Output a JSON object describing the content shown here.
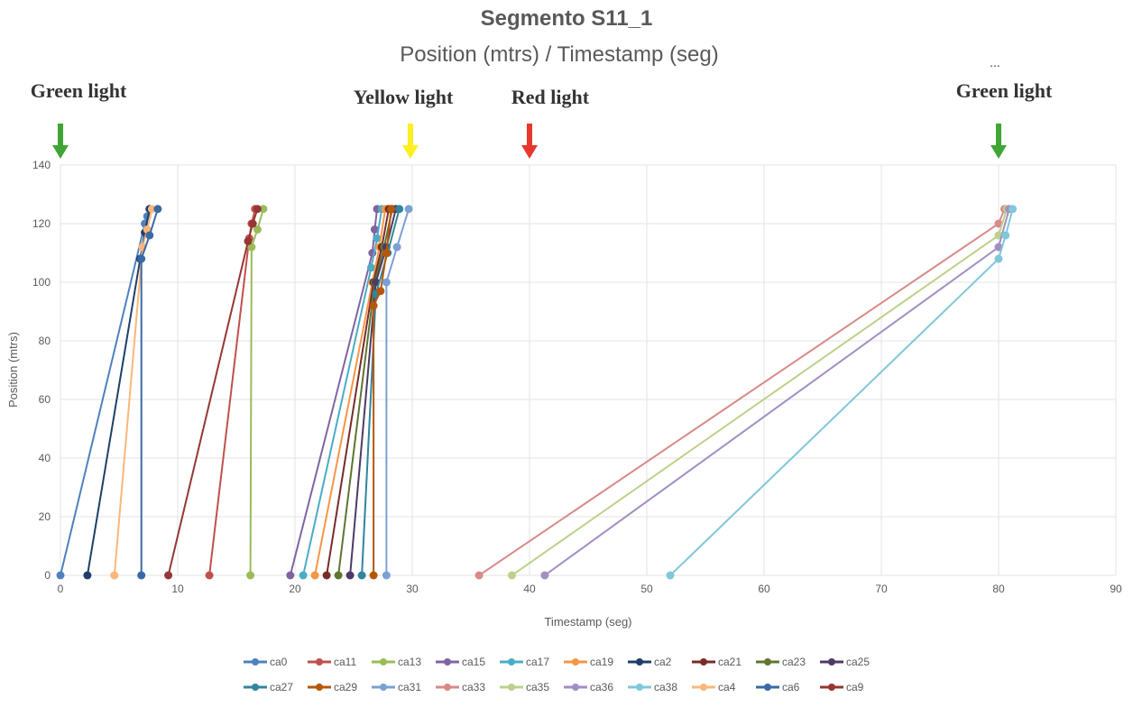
{
  "chart_data": {
    "type": "scatter-line",
    "title": "Segmento S11_1",
    "subtitle": "Position (mtrs) / Timestamp (seg)",
    "xlabel": "Timestamp (seg)",
    "ylabel": "Position (mtrs)",
    "xlim": [
      0,
      90
    ],
    "ylim": [
      0,
      140
    ],
    "xticks": [
      0,
      10,
      20,
      30,
      40,
      50,
      60,
      70,
      80,
      90
    ],
    "yticks": [
      0,
      20,
      40,
      60,
      80,
      100,
      120,
      140
    ],
    "grid": true,
    "legend_position": "bottom",
    "annotations": [
      {
        "text": "Green light",
        "x": 0,
        "arrow_color": "#3fa535"
      },
      {
        "text": "Yellow light",
        "x": 30,
        "arrow_color": "#ffee22"
      },
      {
        "text": "Red light",
        "x": 40,
        "arrow_color": "#e8372c"
      },
      {
        "text": "Green light",
        "x": 80,
        "arrow_color": "#3fa535",
        "note": "..."
      }
    ],
    "series": [
      {
        "name": "ca0",
        "color": "#4f81bd",
        "points": [
          [
            0,
            0
          ],
          [
            7.2,
            120
          ],
          [
            7.4,
            122.5
          ],
          [
            7.6,
            125
          ]
        ]
      },
      {
        "name": "ca11",
        "color": "#c0504d",
        "points": [
          [
            12.7,
            0
          ],
          [
            16.1,
            115
          ],
          [
            16.3,
            120
          ],
          [
            16.6,
            125
          ]
        ]
      },
      {
        "name": "ca13",
        "color": "#9bbb59",
        "points": [
          [
            16.2,
            0
          ],
          [
            16.3,
            112
          ],
          [
            16.8,
            118
          ],
          [
            17.3,
            125
          ]
        ]
      },
      {
        "name": "ca15",
        "color": "#8064a2",
        "points": [
          [
            19.6,
            0
          ],
          [
            26.6,
            110
          ],
          [
            26.8,
            118
          ],
          [
            27.0,
            125
          ]
        ]
      },
      {
        "name": "ca17",
        "color": "#4bacc6",
        "points": [
          [
            20.7,
            0
          ],
          [
            26.5,
            105
          ],
          [
            27.0,
            115
          ],
          [
            27.4,
            125
          ]
        ]
      },
      {
        "name": "ca19",
        "color": "#f79646",
        "points": [
          [
            21.7,
            0
          ],
          [
            26.6,
            100
          ],
          [
            27.2,
            112
          ],
          [
            27.7,
            125
          ]
        ]
      },
      {
        "name": "ca2",
        "color": "#1f3f6a",
        "points": [
          [
            2.3,
            0
          ],
          [
            6.8,
            108
          ],
          [
            7.2,
            117
          ],
          [
            7.6,
            125
          ]
        ]
      },
      {
        "name": "ca21",
        "color": "#772c2a",
        "points": [
          [
            22.7,
            0
          ],
          [
            26.7,
            100
          ],
          [
            27.4,
            112
          ],
          [
            28.0,
            125
          ]
        ]
      },
      {
        "name": "ca23",
        "color": "#5f7530",
        "points": [
          [
            23.7,
            0
          ],
          [
            26.8,
            100
          ],
          [
            27.6,
            112
          ],
          [
            28.3,
            125
          ]
        ]
      },
      {
        "name": "ca25",
        "color": "#4d3b62",
        "points": [
          [
            24.7,
            0
          ],
          [
            26.9,
            100
          ],
          [
            27.8,
            112
          ],
          [
            28.6,
            125
          ]
        ]
      },
      {
        "name": "ca27",
        "color": "#31859c",
        "points": [
          [
            25.7,
            0
          ],
          [
            26.9,
            96
          ],
          [
            27.9,
            110
          ],
          [
            28.9,
            125
          ]
        ]
      },
      {
        "name": "ca29",
        "color": "#b65708",
        "points": [
          [
            26.7,
            0
          ],
          [
            26.7,
            92
          ],
          [
            27.3,
            97
          ],
          [
            27.8,
            110
          ],
          [
            28.2,
            125
          ]
        ]
      },
      {
        "name": "ca31",
        "color": "#7ba0d4",
        "points": [
          [
            27.8,
            0
          ],
          [
            27.8,
            100
          ],
          [
            28.7,
            112
          ],
          [
            29.7,
            125
          ]
        ]
      },
      {
        "name": "ca33",
        "color": "#d88a87",
        "points": [
          [
            35.7,
            0
          ],
          [
            80.0,
            120
          ],
          [
            80.5,
            125
          ]
        ]
      },
      {
        "name": "ca35",
        "color": "#bcd18b",
        "points": [
          [
            38.5,
            0
          ],
          [
            80.0,
            116
          ],
          [
            80.7,
            125
          ]
        ]
      },
      {
        "name": "ca36",
        "color": "#a28fc3",
        "points": [
          [
            41.3,
            0
          ],
          [
            80.0,
            112
          ],
          [
            80.9,
            125
          ]
        ]
      },
      {
        "name": "ca38",
        "color": "#7fc7da",
        "points": [
          [
            52.0,
            0
          ],
          [
            80.0,
            108
          ],
          [
            80.6,
            116
          ],
          [
            81.2,
            125
          ]
        ]
      },
      {
        "name": "ca4",
        "color": "#f9b77a",
        "points": [
          [
            4.6,
            0
          ],
          [
            7.0,
            112
          ],
          [
            7.4,
            118
          ],
          [
            7.8,
            125
          ]
        ]
      },
      {
        "name": "ca6",
        "color": "#3a6aa6",
        "points": [
          [
            6.9,
            0
          ],
          [
            6.9,
            108
          ],
          [
            7.6,
            116
          ],
          [
            8.3,
            125
          ]
        ]
      },
      {
        "name": "ca9",
        "color": "#953735",
        "points": [
          [
            9.2,
            0
          ],
          [
            16.0,
            114
          ],
          [
            16.4,
            120
          ],
          [
            16.8,
            125
          ]
        ]
      }
    ]
  }
}
